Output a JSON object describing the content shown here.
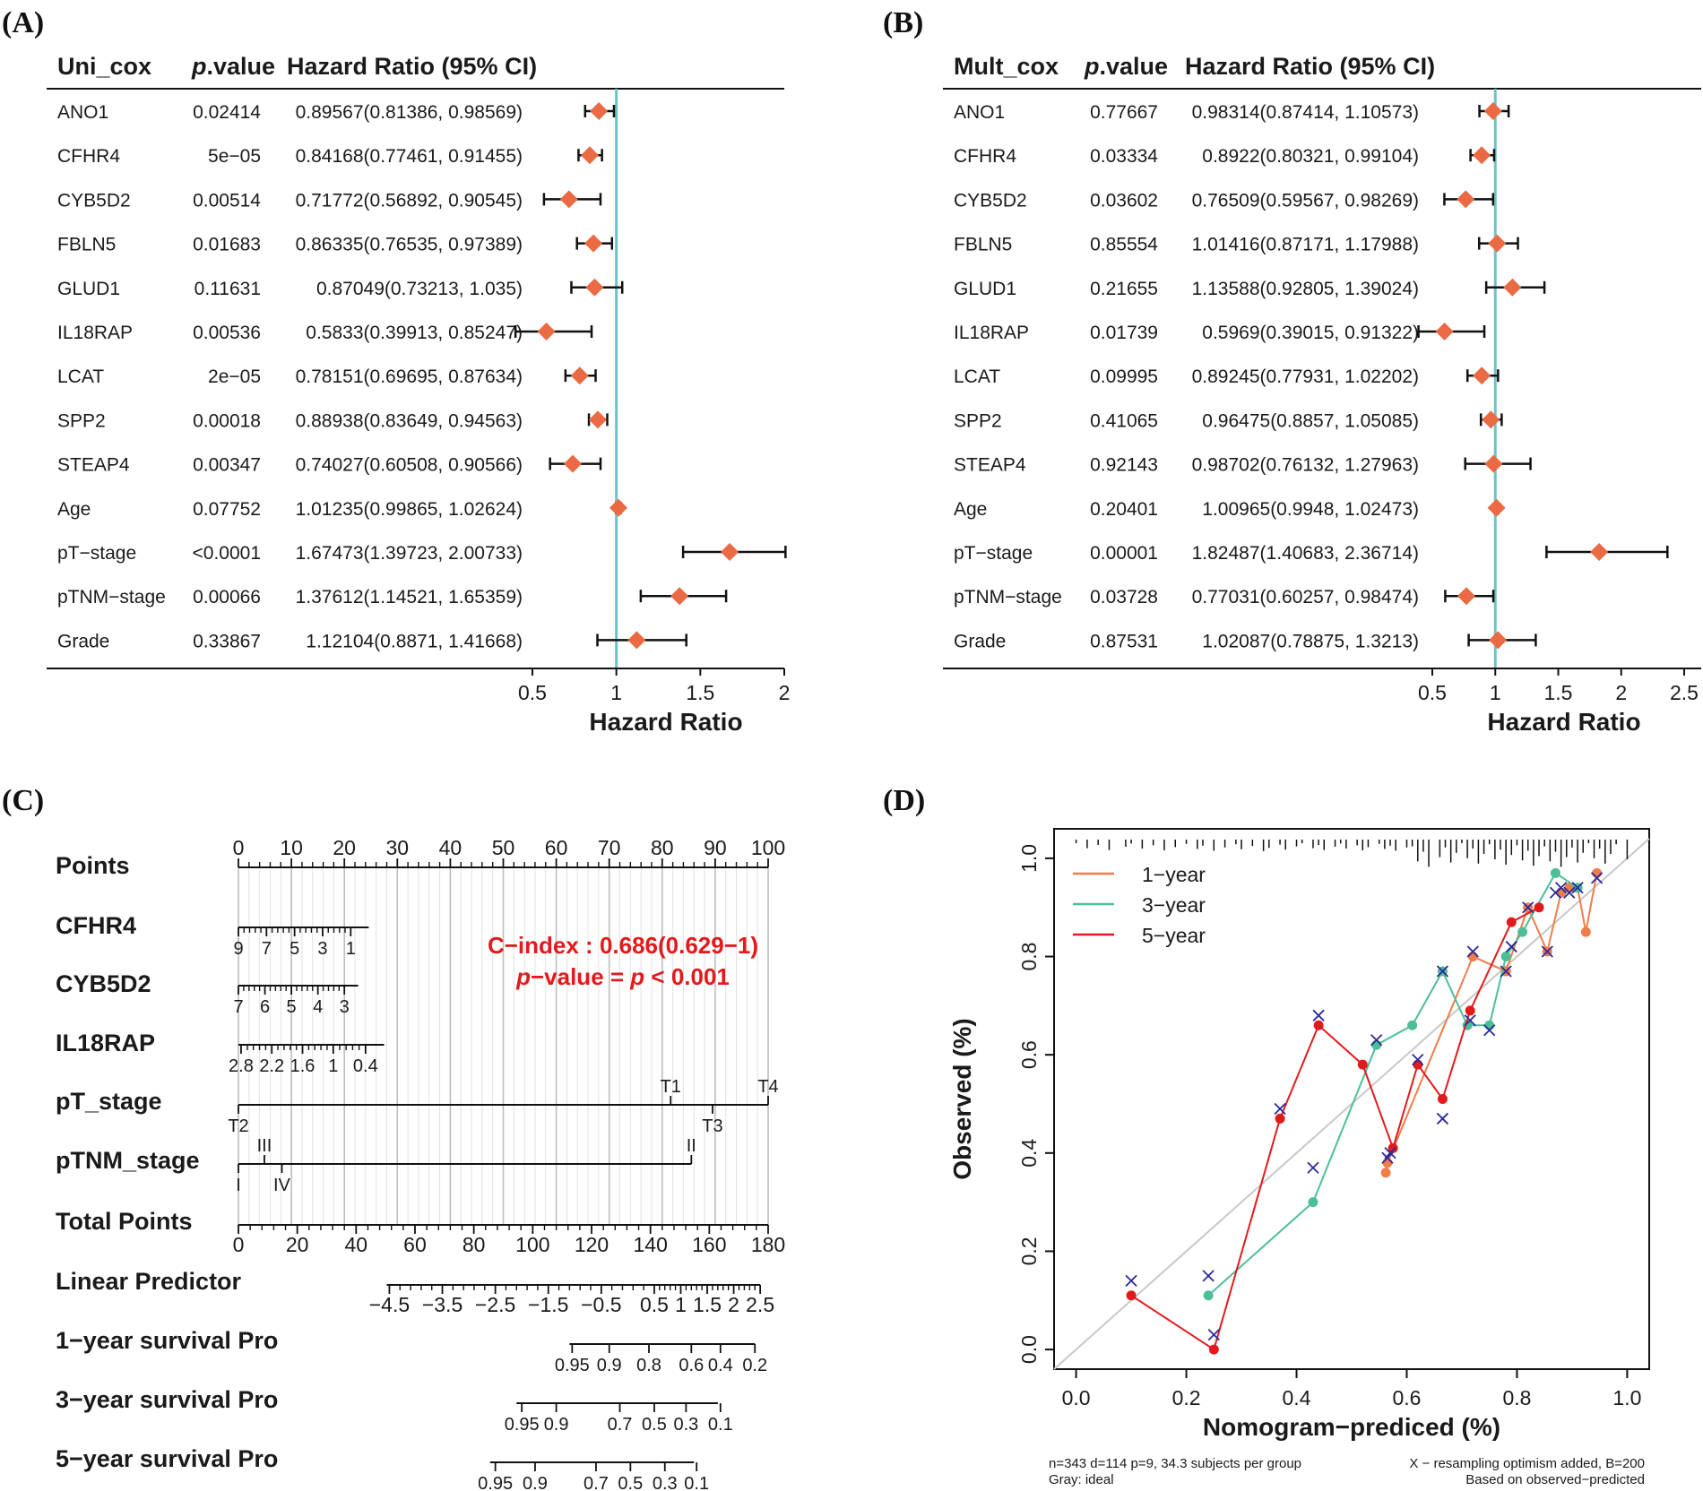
{
  "panels": {
    "a": "(A)",
    "b": "(B)",
    "c": "(C)",
    "d": "(D)"
  },
  "chart_data": [
    {
      "type": "forest",
      "panel": "(A)",
      "headers": {
        "name": "Uni_cox",
        "p_italic": "p",
        "p_rest": ".value",
        "hr": "Hazard Ratio (95% CI)"
      },
      "xlabel": "Hazard Ratio",
      "xlim": [
        0.5,
        2
      ],
      "ticks": [
        "0.5",
        "1",
        "1.5",
        "2"
      ],
      "tick_values": [
        0.5,
        1,
        1.5,
        2
      ],
      "ref_line": 1,
      "rows": [
        {
          "name": "ANO1",
          "p": "0.02414",
          "hr_text": "0.89567(0.81386, 0.98569)",
          "hr": 0.89567,
          "lo": 0.81386,
          "hi": 0.98569
        },
        {
          "name": "CFHR4",
          "p": "5e−05",
          "hr_text": "0.84168(0.77461, 0.91455)",
          "hr": 0.84168,
          "lo": 0.77461,
          "hi": 0.91455
        },
        {
          "name": "CYB5D2",
          "p": "0.00514",
          "hr_text": "0.71772(0.56892, 0.90545)",
          "hr": 0.71772,
          "lo": 0.56892,
          "hi": 0.90545
        },
        {
          "name": "FBLN5",
          "p": "0.01683",
          "hr_text": "0.86335(0.76535, 0.97389)",
          "hr": 0.86335,
          "lo": 0.76535,
          "hi": 0.97389
        },
        {
          "name": "GLUD1",
          "p": "0.11631",
          "hr_text": "0.87049(0.73213, 1.035)",
          "hr": 0.87049,
          "lo": 0.73213,
          "hi": 1.035
        },
        {
          "name": "IL18RAP",
          "p": "0.00536",
          "hr_text": "0.5833(0.39913, 0.85247)",
          "hr": 0.5833,
          "lo": 0.39913,
          "hi": 0.85247
        },
        {
          "name": "LCAT",
          "p": "2e−05",
          "hr_text": "0.78151(0.69695, 0.87634)",
          "hr": 0.78151,
          "lo": 0.69695,
          "hi": 0.87634
        },
        {
          "name": "SPP2",
          "p": "0.00018",
          "hr_text": "0.88938(0.83649, 0.94563)",
          "hr": 0.88938,
          "lo": 0.83649,
          "hi": 0.94563
        },
        {
          "name": "STEAP4",
          "p": "0.00347",
          "hr_text": "0.74027(0.60508, 0.90566)",
          "hr": 0.74027,
          "lo": 0.60508,
          "hi": 0.90566
        },
        {
          "name": "Age",
          "p": "0.07752",
          "hr_text": "1.01235(0.99865, 1.02624)",
          "hr": 1.01235,
          "lo": 0.99865,
          "hi": 1.02624
        },
        {
          "name": "pT−stage",
          "p": "<0.0001",
          "hr_text": "1.67473(1.39723, 2.00733)",
          "hr": 1.67473,
          "lo": 1.39723,
          "hi": 2.00733
        },
        {
          "name": "pTNM−stage",
          "p": "0.00066",
          "hr_text": "1.37612(1.14521, 1.65359)",
          "hr": 1.37612,
          "lo": 1.14521,
          "hi": 1.65359
        },
        {
          "name": "Grade",
          "p": "0.33867",
          "hr_text": "1.12104(0.8871, 1.41668)",
          "hr": 1.12104,
          "lo": 0.8871,
          "hi": 1.41668
        }
      ]
    },
    {
      "type": "forest",
      "panel": "(B)",
      "headers": {
        "name": "Mult_cox",
        "p_italic": "p",
        "p_rest": ".value",
        "hr": "Hazard Ratio (95% CI)"
      },
      "xlabel": "Hazard Ratio",
      "xlim": [
        0.5,
        2.5
      ],
      "ticks": [
        "0.5",
        "1",
        "1.5",
        "2",
        "2.5"
      ],
      "tick_values": [
        0.5,
        1,
        1.5,
        2,
        2.5
      ],
      "ref_line": 1,
      "rows": [
        {
          "name": "ANO1",
          "p": "0.77667",
          "hr_text": "0.98314(0.87414, 1.10573)",
          "hr": 0.98314,
          "lo": 0.87414,
          "hi": 1.10573
        },
        {
          "name": "CFHR4",
          "p": "0.03334",
          "hr_text": "0.8922(0.80321, 0.99104)",
          "hr": 0.8922,
          "lo": 0.80321,
          "hi": 0.99104
        },
        {
          "name": "CYB5D2",
          "p": "0.03602",
          "hr_text": "0.76509(0.59567, 0.98269)",
          "hr": 0.76509,
          "lo": 0.59567,
          "hi": 0.98269
        },
        {
          "name": "FBLN5",
          "p": "0.85554",
          "hr_text": "1.01416(0.87171, 1.17988)",
          "hr": 1.01416,
          "lo": 0.87171,
          "hi": 1.17988
        },
        {
          "name": "GLUD1",
          "p": "0.21655",
          "hr_text": "1.13588(0.92805, 1.39024)",
          "hr": 1.13588,
          "lo": 0.92805,
          "hi": 1.39024
        },
        {
          "name": "IL18RAP",
          "p": "0.01739",
          "hr_text": "0.5969(0.39015, 0.91322)",
          "hr": 0.5969,
          "lo": 0.39015,
          "hi": 0.91322
        },
        {
          "name": "LCAT",
          "p": "0.09995",
          "hr_text": "0.89245(0.77931, 1.02202)",
          "hr": 0.89245,
          "lo": 0.77931,
          "hi": 1.02202
        },
        {
          "name": "SPP2",
          "p": "0.41065",
          "hr_text": "0.96475(0.8857, 1.05085)",
          "hr": 0.96475,
          "lo": 0.8857,
          "hi": 1.05085
        },
        {
          "name": "STEAP4",
          "p": "0.92143",
          "hr_text": "0.98702(0.76132, 1.27963)",
          "hr": 0.98702,
          "lo": 0.76132,
          "hi": 1.27963
        },
        {
          "name": "Age",
          "p": "0.20401",
          "hr_text": "1.00965(0.9948, 1.02473)",
          "hr": 1.00965,
          "lo": 0.9948,
          "hi": 1.02473
        },
        {
          "name": "pT−stage",
          "p": "0.00001",
          "hr_text": "1.82487(1.40683, 2.36714)",
          "hr": 1.82487,
          "lo": 1.40683,
          "hi": 2.36714
        },
        {
          "name": "pTNM−stage",
          "p": "0.03728",
          "hr_text": "0.77031(0.60257, 0.98474)",
          "hr": 0.77031,
          "lo": 0.60257,
          "hi": 0.98474
        },
        {
          "name": "Grade",
          "p": "0.87531",
          "hr_text": "1.02087(0.78875, 1.3213)",
          "hr": 1.02087,
          "lo": 0.78875,
          "hi": 1.3213
        }
      ]
    },
    {
      "type": "nomogram",
      "panel": "(C)",
      "annotation": {
        "cindex": "C−index : 0.686(0.629−1)",
        "pv_italic_a": "p",
        "pv_mid": "−value = ",
        "pv_italic_b": "p",
        "pv_end": " < 0.001"
      },
      "points_range": [
        0,
        100
      ],
      "rows": [
        {
          "label": "Points",
          "from": 0,
          "to": 100,
          "ticks": [
            {
              "t": "0",
              "v": 0
            },
            {
              "t": "10",
              "v": 10
            },
            {
              "t": "20",
              "v": 20
            },
            {
              "t": "30",
              "v": 30
            },
            {
              "t": "40",
              "v": 40
            },
            {
              "t": "50",
              "v": 50
            },
            {
              "t": "60",
              "v": 60
            },
            {
              "t": "70",
              "v": 70
            },
            {
              "t": "80",
              "v": 80
            },
            {
              "t": "90",
              "v": 90
            },
            {
              "t": "100",
              "v": 100
            }
          ],
          "minor": true
        },
        {
          "label": "CFHR4",
          "from": 0,
          "to": 24.6,
          "ticks": [
            {
              "t": "9",
              "v": 0
            },
            {
              "t": "7",
              "v": 5.3
            },
            {
              "t": "5",
              "v": 10.6
            },
            {
              "t": "3",
              "v": 15.9
            },
            {
              "t": "1",
              "v": 21.2
            }
          ],
          "minor": true
        },
        {
          "label": "CYB5D2",
          "from": 0,
          "to": 22.6,
          "ticks": [
            {
              "t": "7",
              "v": 0
            },
            {
              "t": "6",
              "v": 5
            },
            {
              "t": "5",
              "v": 10
            },
            {
              "t": "4",
              "v": 15
            },
            {
              "t": "3",
              "v": 20
            }
          ],
          "minor": true
        },
        {
          "label": "IL18RAP",
          "from": 0,
          "to": 27.5,
          "ticks": [
            {
              "t": "2.8",
              "v": 0.5
            },
            {
              "t": "2.2",
              "v": 6.3
            },
            {
              "t": "1.6",
              "v": 12.1
            },
            {
              "t": "1",
              "v": 17.9
            },
            {
              "t": "0.4",
              "v": 24
            }
          ],
          "minor": true
        },
        {
          "label": "pT_stage",
          "from": 0,
          "to": 100,
          "ticks_up": [
            {
              "t": "T1",
              "v": 81.6
            },
            {
              "t": "T4",
              "v": 100
            }
          ],
          "ticks_down": [
            {
              "t": "T2",
              "v": 0
            },
            {
              "t": "T3",
              "v": 89.5
            }
          ]
        },
        {
          "label": "pTNM_stage",
          "from": 0,
          "to": 85.5,
          "ticks_up": [
            {
              "t": "III",
              "v": 4.9
            },
            {
              "t": "II",
              "v": 85.5
            }
          ],
          "ticks_down": [
            {
              "t": "I",
              "v": 0
            },
            {
              "t": "IV",
              "v": 8.2
            }
          ]
        },
        {
          "label": "Total Points",
          "from": 0,
          "to": 100,
          "ticks": [
            {
              "t": "0",
              "v": 0
            },
            {
              "t": "20",
              "v": 11.11
            },
            {
              "t": "40",
              "v": 22.22
            },
            {
              "t": "60",
              "v": 33.33
            },
            {
              "t": "80",
              "v": 44.44
            },
            {
              "t": "100",
              "v": 55.56
            },
            {
              "t": "120",
              "v": 66.67
            },
            {
              "t": "140",
              "v": 77.78
            },
            {
              "t": "160",
              "v": 88.89
            },
            {
              "t": "180",
              "v": 100
            }
          ],
          "minor": true
        },
        {
          "label": "Linear Predictor",
          "from": 28,
          "to": 98.5,
          "ticks": [
            {
              "t": "−4.5",
              "v": 28.5
            },
            {
              "t": "−3.5",
              "v": 38.5
            },
            {
              "t": "−2.5",
              "v": 48.5
            },
            {
              "t": "−1.5",
              "v": 58.5
            },
            {
              "t": "−0.5",
              "v": 68.5
            },
            {
              "t": "0.5",
              "v": 78.5
            },
            {
              "t": "1",
              "v": 83.5
            },
            {
              "t": "1.5",
              "v": 88.5
            },
            {
              "t": "2",
              "v": 93.5
            },
            {
              "t": "2.5",
              "v": 98.5
            }
          ],
          "minor": true
        },
        {
          "label": "1−year survival Pro",
          "from": 62.5,
          "to": 97.5,
          "ticks": [
            {
              "t": "0.95",
              "v": 63
            },
            {
              "t": "0.9",
              "v": 70
            },
            {
              "t": "0.8",
              "v": 77.5
            },
            {
              "t": "0.6",
              "v": 85.5
            },
            {
              "t": "0.4",
              "v": 91
            },
            {
              "t": "0.2",
              "v": 97.5
            }
          ]
        },
        {
          "label": "3−year survival Pro",
          "from": 52.5,
          "to": 90.5,
          "ticks": [
            {
              "t": "0.95",
              "v": 53.5
            },
            {
              "t": "0.9",
              "v": 60
            },
            {
              "t": "0.7",
              "v": 72
            },
            {
              "t": "0.5",
              "v": 78.5
            },
            {
              "t": "0.3",
              "v": 84.5
            },
            {
              "t": "0.1",
              "v": 91
            }
          ]
        },
        {
          "label": "5−year survival Pro",
          "from": 47.5,
          "to": 86,
          "ticks": [
            {
              "t": "0.95",
              "v": 48.5
            },
            {
              "t": "0.9",
              "v": 56
            },
            {
              "t": "0.7",
              "v": 67.5
            },
            {
              "t": "0.5",
              "v": 74
            },
            {
              "t": "0.3",
              "v": 80.5
            },
            {
              "t": "0.1",
              "v": 86.5
            }
          ]
        }
      ]
    },
    {
      "type": "calibration",
      "panel": "(D)",
      "xlabel": "Nomogram−prediced (%)",
      "ylabel": "Observed (%)",
      "xlim": [
        -0.04,
        1.04
      ],
      "ylim": [
        -0.04,
        1.06
      ],
      "xticks": [
        "0.0",
        "0.2",
        "0.4",
        "0.6",
        "0.8",
        "1.0"
      ],
      "yticks": [
        "0.0",
        "0.2",
        "0.4",
        "0.6",
        "0.8",
        "1.0"
      ],
      "tick_values": [
        0,
        0.2,
        0.4,
        0.6,
        0.8,
        1.0
      ],
      "legend": [
        {
          "name": "1−year",
          "color": "#f07c4a"
        },
        {
          "name": "3−year",
          "color": "#4dbf96"
        },
        {
          "name": "5−year",
          "color": "#e31a1c"
        }
      ],
      "footnote_left": [
        "n=343 d=114 p=9, 34.3 subjects per group",
        "Gray: ideal"
      ],
      "footnote_right": [
        "X − resampling optimism added, B=200",
        "Based on observed−predicted"
      ],
      "ideal_color": "#c8c8c8",
      "x_marker_color": "#2a2a9a",
      "series": [
        {
          "name": "1−year",
          "color": "#f07c4a",
          "x": [
            0.562,
            0.565,
            0.72,
            0.78,
            0.82,
            0.855,
            0.88,
            0.895,
            0.91,
            0.925,
            0.945
          ],
          "y": [
            0.36,
            0.38,
            0.8,
            0.77,
            0.9,
            0.81,
            0.93,
            0.94,
            0.94,
            0.85,
            0.97
          ]
        },
        {
          "name": "3−year",
          "color": "#4dbf96",
          "x": [
            0.24,
            0.43,
            0.545,
            0.61,
            0.665,
            0.71,
            0.75,
            0.78,
            0.81,
            0.87,
            0.91
          ],
          "y": [
            0.11,
            0.3,
            0.62,
            0.66,
            0.77,
            0.66,
            0.66,
            0.8,
            0.85,
            0.97,
            0.94
          ]
        },
        {
          "name": "5−year",
          "color": "#e31a1c",
          "x": [
            0.1,
            0.25,
            0.37,
            0.44,
            0.52,
            0.575,
            0.62,
            0.665,
            0.715,
            0.79,
            0.84
          ],
          "y": [
            0.11,
            0.0,
            0.47,
            0.66,
            0.58,
            0.41,
            0.58,
            0.51,
            0.69,
            0.87,
            0.9
          ]
        }
      ],
      "x_markers": {
        "x": [
          0.1,
          0.24,
          0.25,
          0.37,
          0.43,
          0.44,
          0.545,
          0.565,
          0.57,
          0.62,
          0.665,
          0.665,
          0.715,
          0.72,
          0.75,
          0.78,
          0.79,
          0.82,
          0.855,
          0.87,
          0.88,
          0.895,
          0.91,
          0.945
        ],
        "y": [
          0.14,
          0.15,
          0.03,
          0.49,
          0.37,
          0.68,
          0.63,
          0.39,
          0.4,
          0.59,
          0.47,
          0.77,
          0.67,
          0.81,
          0.65,
          0.77,
          0.82,
          0.9,
          0.81,
          0.93,
          0.94,
          0.93,
          0.94,
          0.96
        ]
      },
      "rug": [
        0.0,
        0.02,
        0.04,
        0.06,
        0.09,
        0.1,
        0.12,
        0.14,
        0.16,
        0.18,
        0.2,
        0.22,
        0.23,
        0.25,
        0.27,
        0.29,
        0.3,
        0.32,
        0.34,
        0.35,
        0.37,
        0.38,
        0.4,
        0.41,
        0.43,
        0.44,
        0.45,
        0.47,
        0.48,
        0.49,
        0.51,
        0.52,
        0.53,
        0.55,
        0.56,
        0.57,
        0.58,
        0.6,
        0.61,
        0.62,
        0.63,
        0.64,
        0.66,
        0.67,
        0.68,
        0.69,
        0.7,
        0.71,
        0.72,
        0.73,
        0.74,
        0.75,
        0.76,
        0.77,
        0.78,
        0.79,
        0.8,
        0.81,
        0.82,
        0.83,
        0.84,
        0.85,
        0.86,
        0.87,
        0.88,
        0.89,
        0.9,
        0.91,
        0.92,
        0.93,
        0.94,
        0.95,
        0.96,
        0.97,
        0.98,
        1.0
      ]
    }
  ]
}
